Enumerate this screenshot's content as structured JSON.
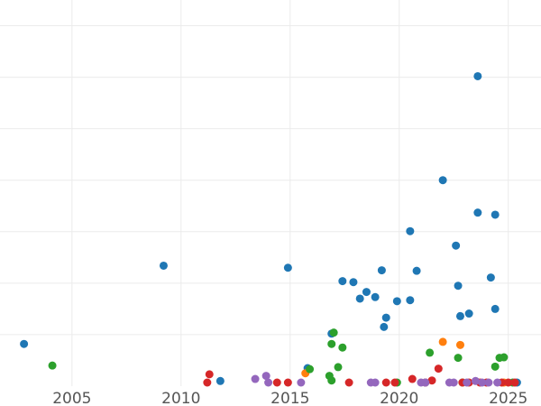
{
  "chart_data": {
    "type": "scatter",
    "title": "",
    "xlabel": "",
    "ylabel": "",
    "xlim": [
      2001.7,
      2026.5
    ],
    "ylim": [
      0,
      75
    ],
    "grid": true,
    "legend": "none",
    "xticks": [
      2005,
      2010,
      2015,
      2020,
      2025
    ],
    "xtick_labels": [
      "2005",
      "2010",
      "2015",
      "2020",
      "2025"
    ],
    "yticks": [
      10,
      20,
      30,
      40,
      50,
      60,
      70
    ],
    "series": [
      {
        "color": "#1f77b4",
        "points": [
          [
            2002.8,
            8.2
          ],
          [
            2009.2,
            23.4
          ],
          [
            2011.8,
            1.0
          ],
          [
            2014.9,
            23.0
          ],
          [
            2015.8,
            3.5
          ],
          [
            2016.9,
            10.2
          ],
          [
            2017.4,
            20.4
          ],
          [
            2017.9,
            20.2
          ],
          [
            2018.2,
            17.0
          ],
          [
            2018.5,
            18.3
          ],
          [
            2018.9,
            17.3
          ],
          [
            2019.2,
            22.5
          ],
          [
            2019.3,
            11.5
          ],
          [
            2019.4,
            13.3
          ],
          [
            2019.9,
            16.5
          ],
          [
            2020.5,
            30.1
          ],
          [
            2020.5,
            16.7
          ],
          [
            2020.8,
            22.4
          ],
          [
            2021.2,
            0.3
          ],
          [
            2022.0,
            40.0
          ],
          [
            2022.6,
            27.3
          ],
          [
            2022.7,
            19.5
          ],
          [
            2022.8,
            13.6
          ],
          [
            2023.2,
            14.1
          ],
          [
            2023.6,
            60.2
          ],
          [
            2023.6,
            33.7
          ],
          [
            2024.2,
            21.1
          ],
          [
            2024.4,
            33.3
          ],
          [
            2024.4,
            15.0
          ],
          [
            2025.4,
            0.4
          ]
        ]
      },
      {
        "color": "#ff7f0e",
        "points": [
          [
            2015.7,
            2.5
          ],
          [
            2022.0,
            8.6
          ],
          [
            2022.8,
            8.0
          ],
          [
            2024.8,
            0.2
          ]
        ]
      },
      {
        "color": "#2ca02c",
        "points": [
          [
            2004.1,
            4.0
          ],
          [
            2015.9,
            3.3
          ],
          [
            2016.8,
            2.0
          ],
          [
            2016.9,
            1.1
          ],
          [
            2016.9,
            8.2
          ],
          [
            2017.0,
            10.4
          ],
          [
            2017.2,
            3.7
          ],
          [
            2017.4,
            7.5
          ],
          [
            2019.9,
            0.6
          ],
          [
            2021.4,
            6.5
          ],
          [
            2022.7,
            5.5
          ],
          [
            2022.9,
            0.5
          ],
          [
            2024.4,
            3.8
          ],
          [
            2024.6,
            5.5
          ],
          [
            2024.8,
            5.6
          ],
          [
            2025.2,
            0.4
          ]
        ]
      },
      {
        "color": "#d62728",
        "points": [
          [
            2011.2,
            0.5
          ],
          [
            2011.3,
            2.3
          ],
          [
            2014.4,
            0.5
          ],
          [
            2014.9,
            0.5
          ],
          [
            2017.7,
            0.3
          ],
          [
            2019.4,
            0.4
          ],
          [
            2019.8,
            0.2
          ],
          [
            2020.6,
            1.4
          ],
          [
            2021.2,
            0.6
          ],
          [
            2021.5,
            1.1
          ],
          [
            2021.8,
            3.4
          ],
          [
            2022.9,
            0.6
          ],
          [
            2023.2,
            0.2
          ],
          [
            2023.7,
            0.6
          ],
          [
            2024.0,
            0.3
          ],
          [
            2024.7,
            0.2
          ],
          [
            2025.0,
            0.2
          ],
          [
            2025.3,
            0.3
          ]
        ]
      },
      {
        "color": "#9467bd",
        "points": [
          [
            2013.4,
            1.4
          ],
          [
            2013.9,
            2.0
          ],
          [
            2014.0,
            0.3
          ],
          [
            2015.5,
            0.3
          ],
          [
            2018.7,
            0.0
          ],
          [
            2018.9,
            0.0
          ],
          [
            2021.0,
            0.4
          ],
          [
            2021.2,
            0.2
          ],
          [
            2022.3,
            0.1
          ],
          [
            2022.5,
            0.2
          ],
          [
            2023.1,
            0.3
          ],
          [
            2023.5,
            1.0
          ],
          [
            2023.8,
            0.6
          ],
          [
            2024.1,
            0.4
          ],
          [
            2024.5,
            0.3
          ]
        ]
      }
    ]
  }
}
